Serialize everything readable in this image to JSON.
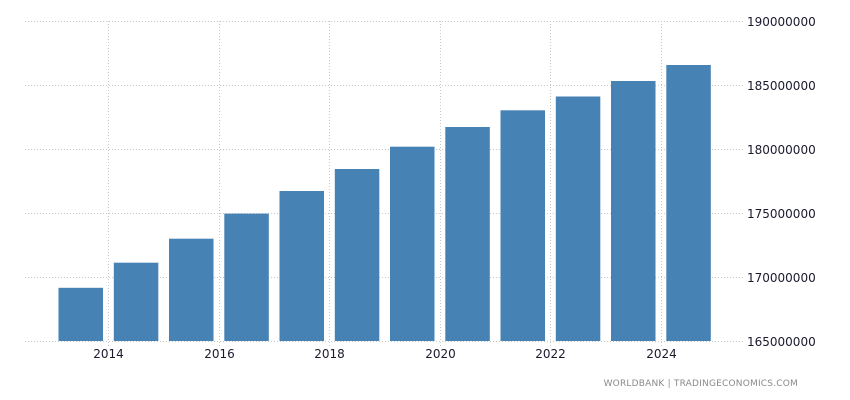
{
  "chart_data": {
    "type": "bar",
    "title": "",
    "xlabel": "",
    "ylabel": "",
    "categories": [
      "2013",
      "2014",
      "2015",
      "2016",
      "2017",
      "2018",
      "2019",
      "2020",
      "2021",
      "2022",
      "2023",
      "2024"
    ],
    "values": [
      169160000,
      171120000,
      172990000,
      174950000,
      176720000,
      178440000,
      180180000,
      181720000,
      183020000,
      184100000,
      185310000,
      186560000
    ],
    "ylim": [
      165000000,
      190000000
    ],
    "yticks": [
      165000000,
      170000000,
      175000000,
      180000000,
      185000000,
      190000000
    ],
    "ytick_labels": [
      "165000000",
      "170000000",
      "175000000",
      "180000000",
      "185000000",
      "190000000"
    ],
    "xticks": [
      "2014",
      "2016",
      "2018",
      "2020",
      "2022",
      "2024"
    ],
    "grid": true,
    "legend": null,
    "bar_color": "#4682b4",
    "grid_color": "#c8c8c8",
    "yaxis_position": "right"
  },
  "footer": {
    "source": "WORLDBANK | TRADINGECONOMICS.COM"
  }
}
